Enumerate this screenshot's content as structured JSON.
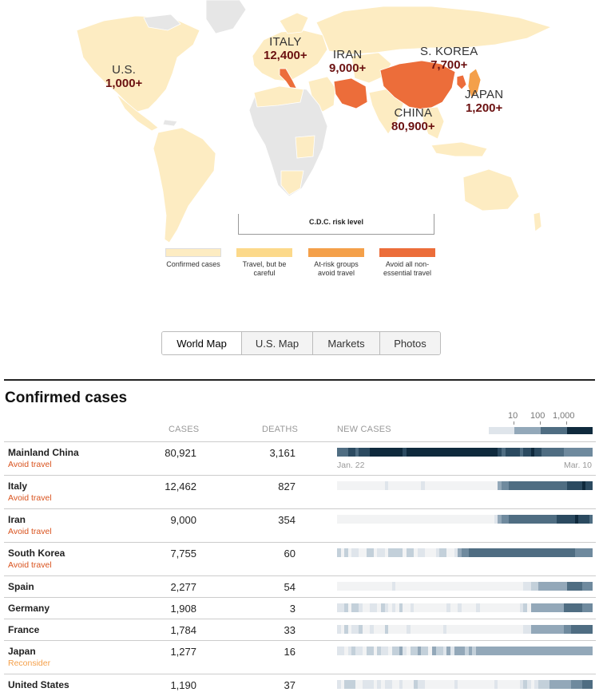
{
  "map": {
    "colors": {
      "ocean": "#ffffff",
      "no_cases": "#e6e6e6",
      "confirmed": "#fdecc2",
      "careful": "#fcd98a",
      "at_risk": "#f4a04a",
      "avoid": "#ec6d3a",
      "label_count": "#6b1111"
    },
    "labels": [
      {
        "name": "U.S.",
        "count": "1,000+"
      },
      {
        "name": "ITALY",
        "count": "12,400+"
      },
      {
        "name": "IRAN",
        "count": "9,000+"
      },
      {
        "name": "S. KOREA",
        "count": "7,700+"
      },
      {
        "name": "CHINA",
        "count": "80,900+"
      },
      {
        "name": "JAPAN",
        "count": "1,200+"
      }
    ]
  },
  "legend": {
    "title": "C.D.C. risk level",
    "items": [
      {
        "label": "Confirmed cases",
        "color": "#fdecc2"
      },
      {
        "label": "Travel, but be careful",
        "color": "#fcd98a"
      },
      {
        "label": "At-risk groups avoid travel",
        "color": "#f4a04a"
      },
      {
        "label": "Avoid all non-essential travel",
        "color": "#ec6d3a"
      }
    ]
  },
  "tabs": [
    {
      "label": "World Map",
      "active": true
    },
    {
      "label": "U.S. Map",
      "active": false
    },
    {
      "label": "Markets",
      "active": false
    },
    {
      "label": "Photos",
      "active": false
    }
  ],
  "table": {
    "title": "Confirmed cases",
    "headers": {
      "cases": "CASES",
      "deaths": "DEATHS",
      "new_cases": "NEW CASES"
    },
    "scale": {
      "labels": [
        "10",
        "100",
        "1,000"
      ],
      "colors": [
        "#dfe5eb",
        "#93a8b9",
        "#4f6d82",
        "#0f2a3d"
      ]
    },
    "date_start": "Jan. 22",
    "date_end": "Mar. 10",
    "heat_colors": [
      "#f2f3f4",
      "#dfe5eb",
      "#c3d0da",
      "#93a8b9",
      "#6f8a9e",
      "#4f6d82",
      "#2b4a60",
      "#0f2a3d"
    ],
    "rows": [
      {
        "country": "Mainland China",
        "advisory": "Avoid travel",
        "advisory_level": "avoid",
        "cases": "80,921",
        "deaths": "3,161",
        "new_cases": "5556656667777777776777777777777777777777777765666656676655555544444444"
      },
      {
        "country": "Italy",
        "advisory": "Avoid travel",
        "advisory_level": "avoid",
        "cases": "12,462",
        "deaths": "827",
        "new_cases": "0000000000000100000000010000000000000000000034455555555555555556666766"
      },
      {
        "country": "Iran",
        "advisory": "Avoid travel",
        "advisory_level": "avoid",
        "cases": "9,000",
        "deaths": "354",
        "new_cases": "0000000000000000000000000000000000000000000134455555555555556666676665"
      },
      {
        "country": "South Korea",
        "advisory": "Avoid travel",
        "advisory_level": "avoid",
        "cases": "7,755",
        "deaths": "60",
        "new_cases": "2020110022011022220220110001220013445555555555555555555555555555544444"
      },
      {
        "country": "Spain",
        "advisory": "",
        "advisory_level": "",
        "cases": "2,277",
        "deaths": "54",
        "new_cases": "0000000000000001000000000000000000000000000000000001122333333335555444"
      },
      {
        "country": "Germany",
        "advisory": "",
        "advisory_level": "",
        "cases": "1,908",
        "deaths": "3",
        "new_cases": "1120221001102101020010000000001001000010000000000012033333333355555444"
      },
      {
        "country": "France",
        "advisory": "",
        "advisory_level": "",
        "cases": "1,784",
        "deaths": "33",
        "new_cases": "1020112001000200000100000000010000000000000000000001133333333344555555"
      },
      {
        "country": "Japan",
        "advisory": "Reconsider",
        "advisory_level": "reconsider",
        "cases": "1,277",
        "deaths": "16",
        "new_cases": "1101211022021102231022322032213133323233333333333333333333333333333333"
      },
      {
        "country": "United States",
        "advisory": "",
        "advisory_level": "",
        "cases": "1,190",
        "deaths": "37",
        "new_cases": "1022200111010110010002110000000010000000000100000012101222333333444555"
      }
    ]
  }
}
